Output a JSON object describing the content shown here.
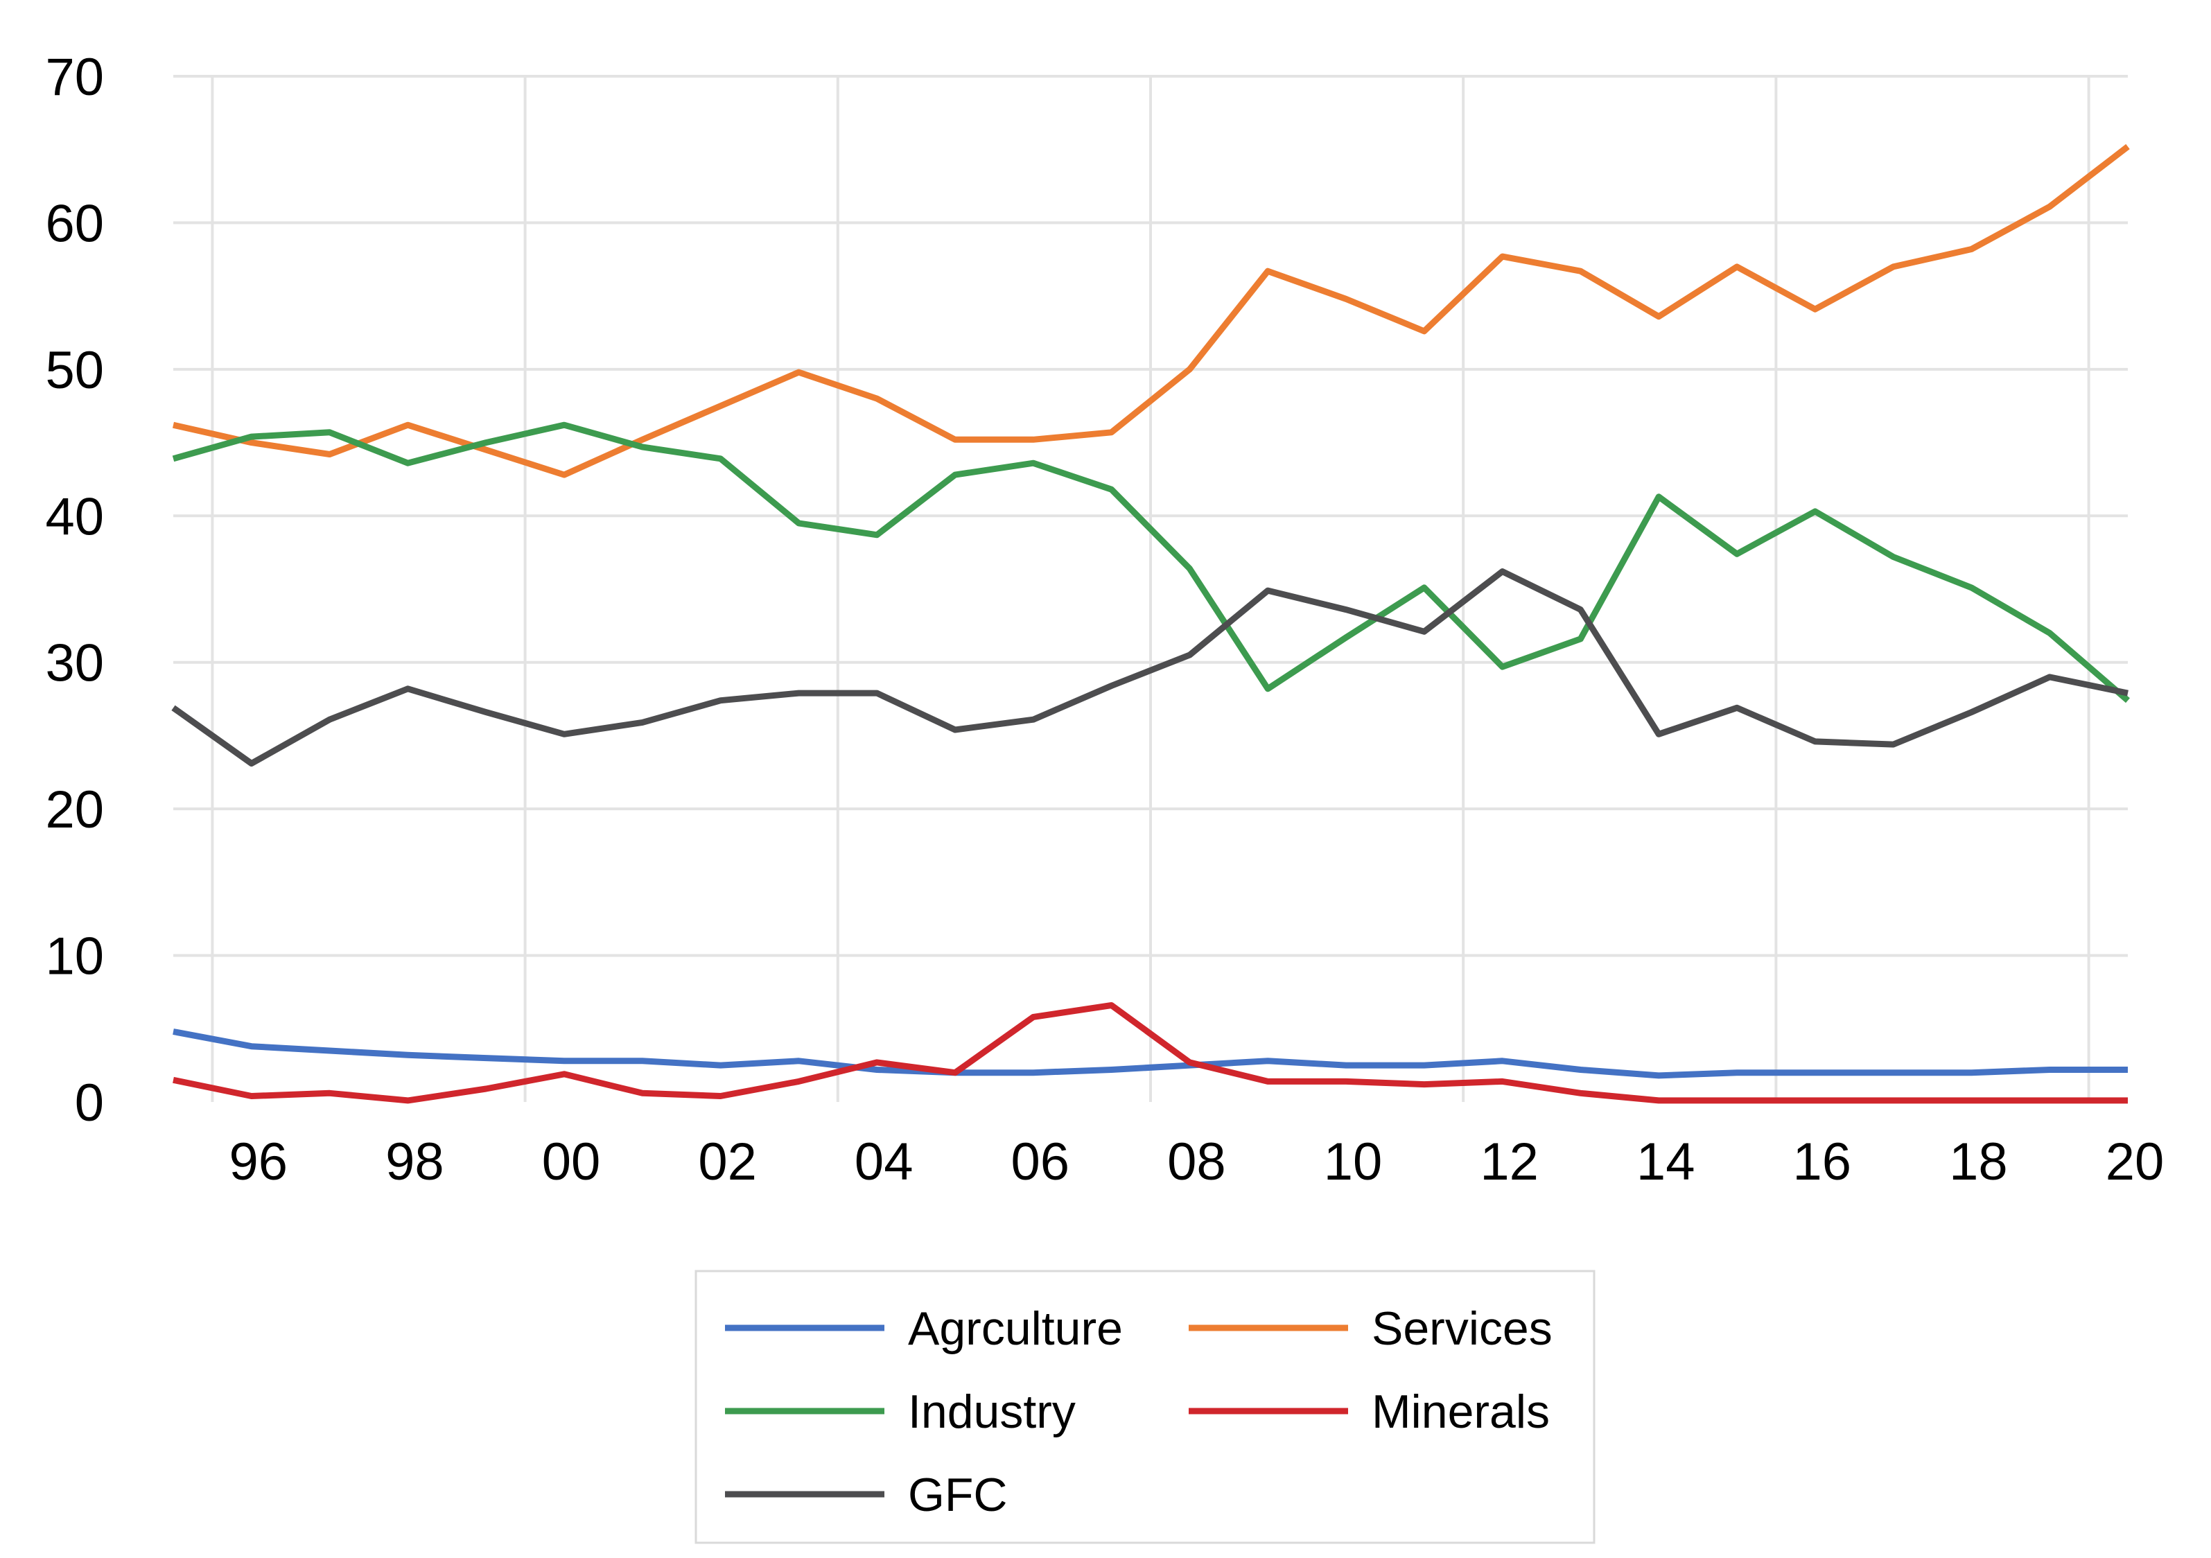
{
  "chart_data": {
    "type": "line",
    "title": "",
    "xlabel": "",
    "ylabel": "",
    "x": [
      1995,
      1996,
      1997,
      1998,
      1999,
      2000,
      2001,
      2002,
      2003,
      2004,
      2005,
      2006,
      2007,
      2008,
      2009,
      2010,
      2011,
      2012,
      2013,
      2014,
      2015,
      2016,
      2017,
      2018,
      2019,
      2020
    ],
    "xlim": [
      1995,
      2020
    ],
    "ylim": [
      0,
      70
    ],
    "x_ticks": [
      {
        "value": 1996,
        "label": "96"
      },
      {
        "value": 1998,
        "label": "98"
      },
      {
        "value": 2000,
        "label": "00"
      },
      {
        "value": 2002,
        "label": "02"
      },
      {
        "value": 2004,
        "label": "04"
      },
      {
        "value": 2006,
        "label": "06"
      },
      {
        "value": 2008,
        "label": "08"
      },
      {
        "value": 2010,
        "label": "10"
      },
      {
        "value": 2012,
        "label": "12"
      },
      {
        "value": 2014,
        "label": "14"
      },
      {
        "value": 2016,
        "label": "16"
      },
      {
        "value": 2018,
        "label": "18"
      },
      {
        "value": 2020,
        "label": "20"
      }
    ],
    "y_ticks": [
      {
        "value": 0,
        "label": "0"
      },
      {
        "value": 10,
        "label": "10"
      },
      {
        "value": 20,
        "label": "20"
      },
      {
        "value": 30,
        "label": "30"
      },
      {
        "value": 40,
        "label": "40"
      },
      {
        "value": 50,
        "label": "50"
      },
      {
        "value": 60,
        "label": "60"
      },
      {
        "value": 70,
        "label": "70"
      }
    ],
    "grid": true,
    "legend_position": "bottom",
    "series": [
      {
        "name": "Agrculture",
        "color": "#4472C4",
        "values": [
          4.8,
          3.8,
          3.5,
          3.2,
          3.0,
          2.8,
          2.8,
          2.5,
          2.8,
          2.2,
          2.0,
          2.0,
          2.2,
          2.5,
          2.8,
          2.5,
          2.5,
          2.8,
          2.2,
          1.8,
          2.0,
          2.0,
          2.0,
          2.0,
          2.2,
          2.2
        ]
      },
      {
        "name": "Services",
        "color": "#ED7D31",
        "values": [
          46.2,
          45.0,
          44.2,
          46.2,
          44.5,
          42.8,
          45.2,
          47.5,
          49.8,
          48.0,
          45.2,
          45.2,
          45.7,
          50.0,
          56.7,
          54.8,
          52.6,
          57.7,
          56.7,
          53.6,
          57.0,
          54.1,
          57.0,
          58.2,
          61.1,
          65.2
        ]
      },
      {
        "name": "Industry",
        "color": "#3D9B4F",
        "values": [
          43.9,
          45.4,
          45.7,
          43.6,
          45.0,
          46.2,
          44.7,
          43.9,
          39.5,
          38.7,
          42.8,
          43.6,
          41.8,
          36.4,
          28.2,
          31.7,
          35.1,
          29.7,
          31.6,
          41.3,
          37.4,
          40.3,
          37.2,
          35.1,
          32.0,
          27.4
        ]
      },
      {
        "name": "Minerals",
        "color": "#D0262C",
        "values": [
          1.5,
          0.4,
          0.6,
          0.1,
          0.9,
          1.9,
          0.6,
          0.4,
          1.4,
          2.7,
          2.0,
          5.8,
          6.6,
          2.7,
          1.4,
          1.4,
          1.2,
          1.4,
          0.6,
          0.1,
          0.1,
          0.1,
          0.1,
          0.1,
          0.1,
          0.1
        ]
      },
      {
        "name": "GFC",
        "color": "#4D4D4F",
        "values": [
          26.9,
          23.1,
          26.1,
          28.2,
          26.6,
          25.1,
          25.9,
          27.4,
          27.9,
          27.9,
          25.4,
          26.1,
          28.4,
          30.5,
          34.9,
          33.6,
          32.1,
          36.2,
          33.6,
          25.1,
          26.9,
          24.6,
          24.4,
          26.6,
          29.0,
          27.9
        ]
      }
    ]
  }
}
